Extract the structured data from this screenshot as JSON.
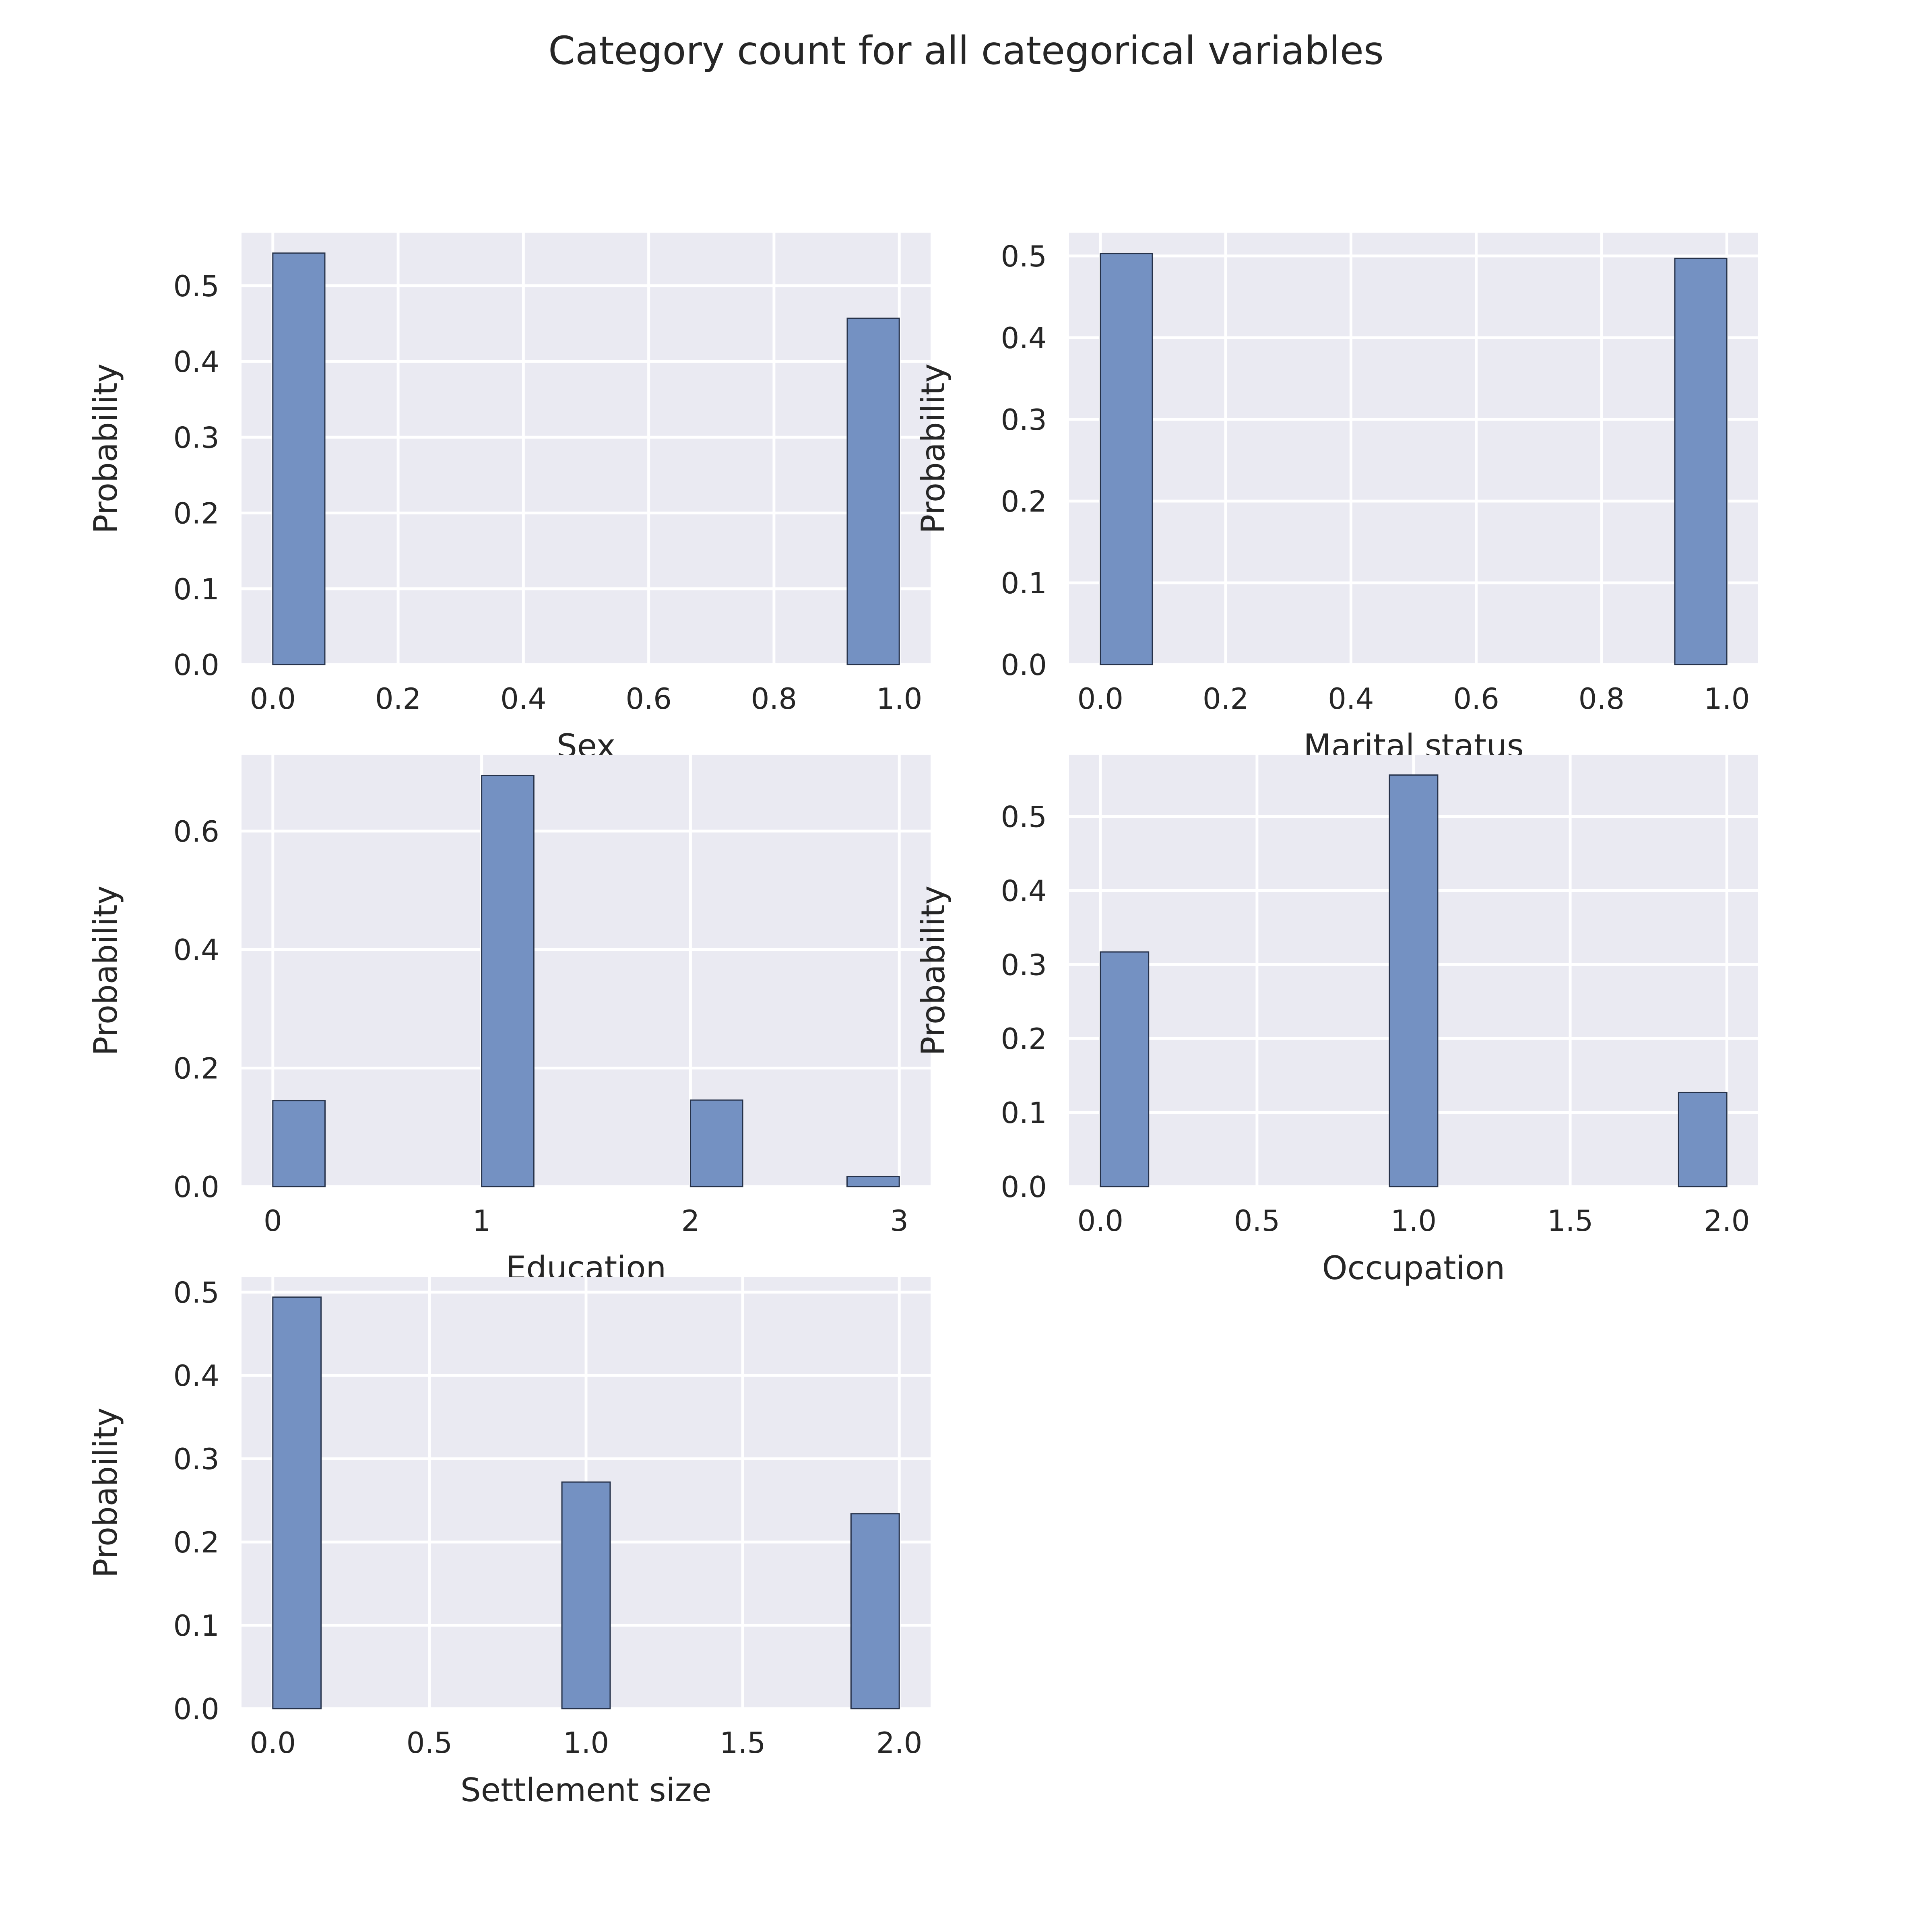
{
  "figure": {
    "title": "Category count for all categorical variables",
    "colors": {
      "axes_background": "#EAEAF2",
      "grid": "#FFFFFF",
      "bar_fill": "#7491C2",
      "bar_edge": "#26324A",
      "text": "#262626"
    }
  },
  "chart_data": [
    {
      "type": "bar",
      "xlabel": "Sex",
      "ylabel": "Probability",
      "xlim": [
        -0.05,
        1.05
      ],
      "ylim": [
        0,
        0.57
      ],
      "xticks": [
        0.0,
        0.2,
        0.4,
        0.6,
        0.8,
        1.0
      ],
      "xtick_labels": [
        "0.0",
        "0.2",
        "0.4",
        "0.6",
        "0.8",
        "1.0"
      ],
      "yticks": [
        0.0,
        0.1,
        0.2,
        0.3,
        0.4,
        0.5
      ],
      "ytick_labels": [
        "0.0",
        "0.1",
        "0.2",
        "0.3",
        "0.4",
        "0.5"
      ],
      "bins": [
        {
          "x0": 0.0,
          "x1": 0.083,
          "value": 0.543
        },
        {
          "x0": 0.917,
          "x1": 1.0,
          "value": 0.457
        }
      ],
      "grid": true
    },
    {
      "type": "bar",
      "xlabel": "Marital status",
      "ylabel": "Probability",
      "xlim": [
        -0.05,
        1.05
      ],
      "ylim": [
        0,
        0.5285
      ],
      "xticks": [
        0.0,
        0.2,
        0.4,
        0.6,
        0.8,
        1.0
      ],
      "xtick_labels": [
        "0.0",
        "0.2",
        "0.4",
        "0.6",
        "0.8",
        "1.0"
      ],
      "yticks": [
        0.0,
        0.1,
        0.2,
        0.3,
        0.4,
        0.5
      ],
      "ytick_labels": [
        "0.0",
        "0.1",
        "0.2",
        "0.3",
        "0.4",
        "0.5"
      ],
      "bins": [
        {
          "x0": 0.0,
          "x1": 0.083,
          "value": 0.503
        },
        {
          "x0": 0.917,
          "x1": 1.0,
          "value": 0.497
        }
      ],
      "grid": true
    },
    {
      "type": "bar",
      "xlabel": "Education",
      "ylabel": "Probability",
      "xlim": [
        -0.15,
        3.15
      ],
      "ylim": [
        0,
        0.729
      ],
      "xticks": [
        0,
        1,
        2,
        3
      ],
      "xtick_labels": [
        "0",
        "1",
        "2",
        "3"
      ],
      "yticks": [
        0.0,
        0.2,
        0.4,
        0.6
      ],
      "ytick_labels": [
        "0.0",
        "0.2",
        "0.4",
        "0.6"
      ],
      "bins": [
        {
          "x0": 0.0,
          "x1": 0.25,
          "value": 0.145
        },
        {
          "x0": 1.0,
          "x1": 1.25,
          "value": 0.694
        },
        {
          "x0": 2.0,
          "x1": 2.25,
          "value": 0.146
        },
        {
          "x0": 2.75,
          "x1": 3.0,
          "value": 0.017
        }
      ],
      "grid": true
    },
    {
      "type": "bar",
      "xlabel": "Occupation",
      "ylabel": "Probability",
      "xlim": [
        -0.1,
        2.1
      ],
      "ylim": [
        0,
        0.5835
      ],
      "xticks": [
        0.0,
        0.5,
        1.0,
        1.5,
        2.0
      ],
      "xtick_labels": [
        "0.0",
        "0.5",
        "1.0",
        "1.5",
        "2.0"
      ],
      "yticks": [
        0.0,
        0.1,
        0.2,
        0.3,
        0.4,
        0.5
      ],
      "ytick_labels": [
        "0.0",
        "0.1",
        "0.2",
        "0.3",
        "0.4",
        "0.5"
      ],
      "bins": [
        {
          "x0": 0.0,
          "x1": 0.154,
          "value": 0.317
        },
        {
          "x0": 0.923,
          "x1": 1.077,
          "value": 0.556
        },
        {
          "x0": 1.846,
          "x1": 2.0,
          "value": 0.127
        }
      ],
      "grid": true
    },
    {
      "type": "bar",
      "xlabel": "Settlement size",
      "ylabel": "Probability",
      "xlim": [
        -0.1,
        2.1
      ],
      "ylim": [
        0,
        0.5185
      ],
      "xticks": [
        0.0,
        0.5,
        1.0,
        1.5,
        2.0
      ],
      "xtick_labels": [
        "0.0",
        "0.5",
        "1.0",
        "1.5",
        "2.0"
      ],
      "yticks": [
        0.0,
        0.1,
        0.2,
        0.3,
        0.4,
        0.5
      ],
      "ytick_labels": [
        "0.0",
        "0.1",
        "0.2",
        "0.3",
        "0.4",
        "0.5"
      ],
      "bins": [
        {
          "x0": 0.0,
          "x1": 0.154,
          "value": 0.494
        },
        {
          "x0": 0.923,
          "x1": 1.077,
          "value": 0.272
        },
        {
          "x0": 1.846,
          "x1": 2.0,
          "value": 0.234
        }
      ],
      "grid": true
    }
  ]
}
